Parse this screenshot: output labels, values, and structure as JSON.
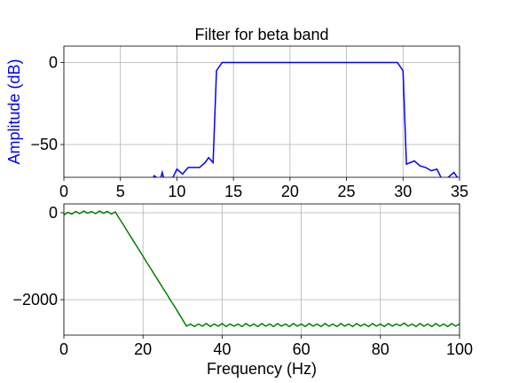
{
  "chart_data": [
    {
      "type": "line",
      "title": "Filter for beta band",
      "ylabel": "Amplitude (dB)",
      "ylabel_color": "#0000ff",
      "x": [
        7.5,
        8,
        8.5,
        8.7,
        9,
        9.5,
        10,
        10.5,
        11,
        11.5,
        12,
        12.5,
        12.8,
        13.2,
        13.5,
        14,
        15,
        16,
        17,
        18,
        19,
        20,
        21,
        22,
        23,
        24,
        25,
        26,
        27,
        28,
        29,
        29.5,
        30,
        30.3,
        31,
        31.5,
        32,
        32.5,
        33,
        33.5,
        34,
        34.5,
        35
      ],
      "values": [
        -75,
        -69,
        -72,
        -67,
        -75,
        -72,
        -65,
        -68,
        -64,
        -64,
        -64,
        -61,
        -58,
        -61,
        -5,
        0,
        0,
        0,
        0,
        0,
        0,
        0,
        0,
        0,
        0,
        0,
        0,
        0,
        0,
        0,
        0,
        0,
        -5,
        -62,
        -60,
        -63,
        -64,
        -66,
        -65,
        -72,
        -70,
        -67,
        -72
      ],
      "color": "#0000ff",
      "xlim": [
        0,
        35
      ],
      "xticks": [
        0,
        5,
        10,
        15,
        20,
        25,
        30,
        35
      ],
      "ylim": [
        -70,
        10
      ],
      "yticks": [
        0,
        {
          "value": -50,
          "label": "−50"
        }
      ],
      "grid": true
    },
    {
      "type": "line",
      "xlabel": "Frequency (Hz)",
      "x": [
        0,
        1,
        2,
        3,
        4,
        5,
        6,
        7,
        8,
        9,
        10,
        11,
        12,
        13,
        14,
        15,
        16,
        17,
        18,
        19,
        20,
        21,
        22,
        23,
        24,
        25,
        26,
        27,
        28,
        29,
        30,
        31,
        32,
        33,
        34,
        35,
        36,
        37,
        38,
        39,
        40,
        41,
        42,
        43,
        44,
        45,
        46,
        47,
        48,
        49,
        50,
        51,
        52,
        53,
        54,
        55,
        56,
        57,
        58,
        59,
        60,
        61,
        62,
        63,
        64,
        65,
        66,
        67,
        68,
        69,
        70,
        71,
        72,
        73,
        74,
        75,
        76,
        77,
        78,
        79,
        80,
        81,
        82,
        83,
        84,
        85,
        86,
        87,
        88,
        89,
        90,
        91,
        92,
        93,
        94,
        95,
        96,
        97,
        98,
        99,
        100
      ],
      "values": [
        -50,
        10,
        -30,
        30,
        -20,
        40,
        -10,
        30,
        -20,
        40,
        -10,
        30,
        -30,
        20,
        -130,
        -270,
        -420,
        -565,
        -710,
        -855,
        -1000,
        -1150,
        -1290,
        -1440,
        -1580,
        -1730,
        -1870,
        -2020,
        -2160,
        -2310,
        -2460,
        -2610,
        -2560,
        -2620,
        -2560,
        -2610,
        -2550,
        -2620,
        -2560,
        -2610,
        -2550,
        -2620,
        -2560,
        -2610,
        -2560,
        -2620,
        -2550,
        -2610,
        -2560,
        -2620,
        -2550,
        -2610,
        -2560,
        -2620,
        -2550,
        -2610,
        -2560,
        -2620,
        -2550,
        -2610,
        -2560,
        -2620,
        -2550,
        -2610,
        -2560,
        -2620,
        -2550,
        -2610,
        -2560,
        -2620,
        -2550,
        -2610,
        -2560,
        -2620,
        -2550,
        -2610,
        -2560,
        -2620,
        -2550,
        -2610,
        -2560,
        -2620,
        -2550,
        -2610,
        -2560,
        -2600,
        -2540,
        -2610,
        -2560,
        -2620,
        -2550,
        -2610,
        -2560,
        -2620,
        -2550,
        -2610,
        -2560,
        -2620,
        -2550,
        -2610,
        -2560
      ],
      "color": "#008000",
      "xlim": [
        0,
        100
      ],
      "xticks": [
        0,
        20,
        40,
        60,
        80,
        100
      ],
      "ylim": [
        -2816,
        204
      ],
      "yticks": [
        0,
        {
          "value": -2000,
          "label": "−2000"
        }
      ],
      "grid": true
    }
  ]
}
